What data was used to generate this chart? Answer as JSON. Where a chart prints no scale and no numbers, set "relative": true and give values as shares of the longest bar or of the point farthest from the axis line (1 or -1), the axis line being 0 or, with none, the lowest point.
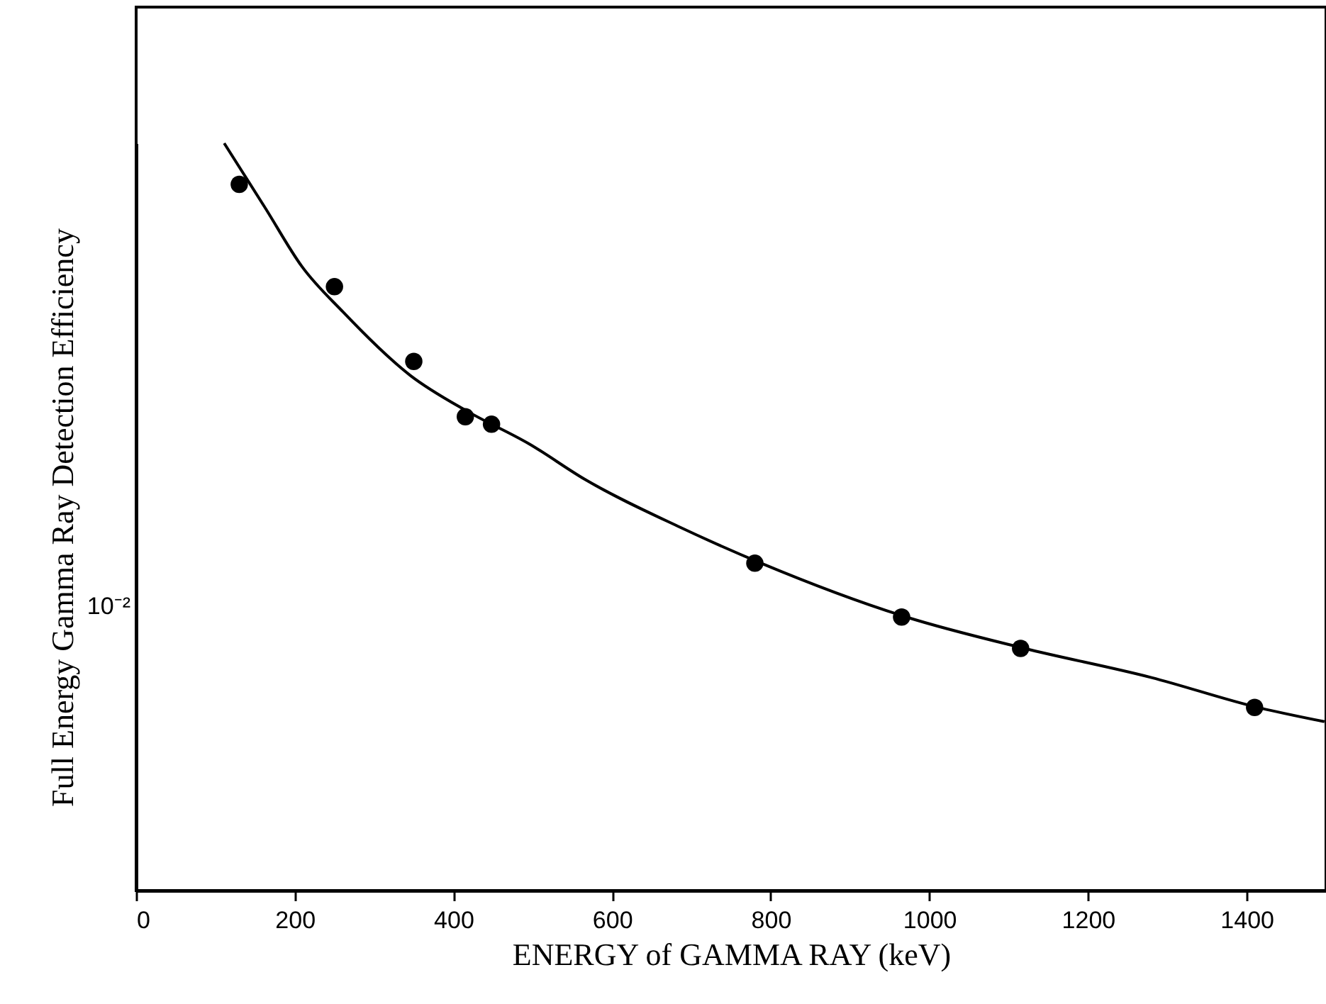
{
  "chart_data": {
    "type": "scatter",
    "relative": true,
    "xlabel": "ENERGY of GAMMA RAY (keV)",
    "ylabel": "Full Energy Gamma Ray Detection Efficiency",
    "grid": false,
    "annotations": [
      "10⁻²"
    ],
    "xlim": [
      0,
      1500
    ],
    "xticks": [
      0,
      200,
      400,
      600,
      800,
      1000,
      1200,
      1400
    ],
    "series": [
      {
        "marker": "circle",
        "color": "#000000",
        "x": [
          130,
          250,
          350,
          415,
          448,
          780,
          965,
          1115,
          1410
        ],
        "values": [
          0.945,
          0.808,
          0.708,
          0.634,
          0.624,
          0.438,
          0.366,
          0.324,
          0.245
        ]
      },
      {
        "type": "line",
        "marker": "none",
        "line_style": "solid",
        "color": "#000000",
        "x": [
          111,
          163,
          209,
          261,
          346,
          418,
          495,
          566,
          686,
          788,
          971,
          1120,
          1280,
          1414,
          1498
        ],
        "values": [
          1,
          0.913,
          0.835,
          0.774,
          0.689,
          0.641,
          0.598,
          0.55,
          0.486,
          0.438,
          0.366,
          0.324,
          0.285,
          0.245,
          0.226
        ]
      }
    ]
  }
}
